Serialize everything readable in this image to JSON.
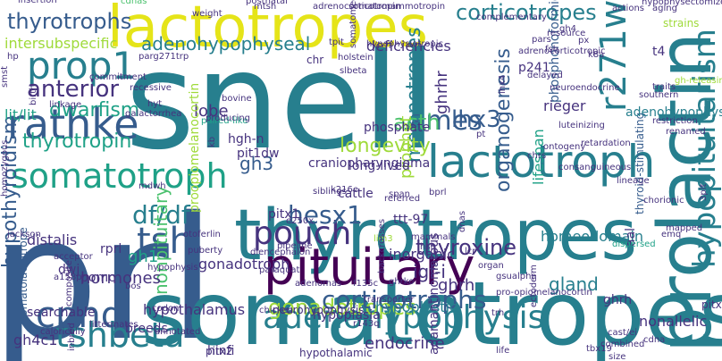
{
  "palette": {
    "purple": "#440154",
    "indigo": "#46337e",
    "blue": "#365c8d",
    "steel": "#277f8e",
    "teal": "#1fa187",
    "green": "#4ac16d",
    "lime": "#9fda3a",
    "yellow": "#e5e419"
  },
  "words": [
    {
      "text": "snell",
      "color": "steel"
    },
    {
      "text": "prl",
      "color": "blue"
    },
    {
      "text": "somatotropes",
      "color": "steel"
    },
    {
      "text": "thyrotropes",
      "color": "steel"
    },
    {
      "text": "prolactin",
      "color": "steel"
    },
    {
      "text": "lactotropes",
      "color": "yellow"
    },
    {
      "text": "pituitary",
      "color": "purple"
    },
    {
      "text": "lactotroph",
      "color": "steel"
    },
    {
      "text": "rathke",
      "color": "blue"
    },
    {
      "text": "prop1",
      "color": "steel"
    },
    {
      "text": "somatotroph",
      "color": "teal"
    },
    {
      "text": "adenohypophysis",
      "color": "steel"
    },
    {
      "text": "tshbeta",
      "color": "steel"
    },
    {
      "text": "pouch",
      "color": "indigo"
    },
    {
      "text": "r271w",
      "color": "steel"
    },
    {
      "text": "tsh",
      "color": "blue"
    },
    {
      "text": "cphd",
      "color": "blue"
    },
    {
      "text": "hypopituitarism",
      "color": "steel"
    },
    {
      "text": "corticotropes",
      "color": "steel"
    },
    {
      "text": "thyrotrophs",
      "color": "blue"
    },
    {
      "text": "thyrotropin",
      "color": "teal"
    },
    {
      "text": "ames",
      "color": "blue"
    },
    {
      "text": "hesx1",
      "color": "blue"
    },
    {
      "text": "adenohypophyseal",
      "color": "steel"
    },
    {
      "text": "anterior",
      "color": "indigo"
    },
    {
      "text": "dwarfism",
      "color": "teal"
    },
    {
      "text": "df/df",
      "color": "steel"
    },
    {
      "text": "gonadotropes",
      "color": "lime"
    },
    {
      "text": "corticotrophs",
      "color": "blue"
    },
    {
      "text": "melanotropes",
      "color": "steel"
    },
    {
      "text": "lhx3",
      "color": "blue"
    },
    {
      "text": "acth",
      "color": "green"
    },
    {
      "text": "longevity",
      "color": "lime"
    },
    {
      "text": "thyroxine",
      "color": "indigo"
    },
    {
      "text": "hypothyroidism",
      "color": "blue"
    },
    {
      "text": "somatolactotrope",
      "color": "blue"
    },
    {
      "text": "nonpituitary",
      "color": "green"
    },
    {
      "text": "ghrhr",
      "color": "indigo"
    },
    {
      "text": "organogenesis",
      "color": "blue"
    },
    {
      "text": "gh3",
      "color": "blue"
    },
    {
      "text": "gh1",
      "color": "teal"
    },
    {
      "text": "gh4c1",
      "color": "indigo"
    },
    {
      "text": "ghrh",
      "color": "indigo"
    },
    {
      "text": "gland",
      "color": "steel"
    },
    {
      "text": "endocrine",
      "color": "indigo"
    },
    {
      "text": "igf-i",
      "color": "indigo"
    },
    {
      "text": "hormones",
      "color": "indigo"
    },
    {
      "text": "hypothalamus",
      "color": "indigo"
    },
    {
      "text": "breeds",
      "color": "indigo"
    },
    {
      "text": "searchable",
      "color": "indigo"
    },
    {
      "text": "distalis",
      "color": "indigo"
    },
    {
      "text": "pomc",
      "color": "indigo"
    },
    {
      "text": "rprl",
      "color": "indigo"
    },
    {
      "text": "dwj",
      "color": "indigo"
    },
    {
      "text": "prophet",
      "color": "lime"
    },
    {
      "text": "lobe",
      "color": "indigo"
    },
    {
      "text": "hgh-n",
      "color": "indigo"
    },
    {
      "text": "pit1dw",
      "color": "indigo"
    },
    {
      "text": "phosphate",
      "color": "indigo"
    },
    {
      "text": "inorganic",
      "color": "indigo"
    },
    {
      "text": "gonadotroph",
      "color": "indigo"
    },
    {
      "text": "long-lived",
      "color": "indigo"
    },
    {
      "text": "ttt-97",
      "color": "indigo"
    },
    {
      "text": "lifespan",
      "color": "teal"
    },
    {
      "text": "homeodomain",
      "color": "steel"
    },
    {
      "text": "rieger",
      "color": "indigo"
    },
    {
      "text": "p241",
      "color": "indigo"
    },
    {
      "text": "t4",
      "color": "indigo"
    },
    {
      "text": "hypoplastic",
      "color": "steel"
    },
    {
      "text": "hypoplasia",
      "color": "indigo"
    },
    {
      "text": "neurohypophysis",
      "color": "indigo"
    },
    {
      "text": "intersubspecific",
      "color": "lime"
    },
    {
      "text": "lit/lit",
      "color": "teal"
    },
    {
      "text": "craniopharyngioma",
      "color": "indigo"
    },
    {
      "text": "cattle",
      "color": "indigo"
    },
    {
      "text": "deficiencies",
      "color": "indigo"
    },
    {
      "text": "chr",
      "color": "indigo"
    },
    {
      "text": "phosphonoformic",
      "color": "blue"
    },
    {
      "text": "hypothalamic",
      "color": "indigo"
    },
    {
      "text": "thyroid-stimulating",
      "color": "blue"
    },
    {
      "text": "proopiomelanocortin",
      "color": "lime"
    },
    {
      "text": "pitx1",
      "color": "indigo"
    },
    {
      "text": "pitx2",
      "color": "indigo"
    },
    {
      "text": "pitx",
      "color": "indigo"
    },
    {
      "text": "hinfi",
      "color": "indigo"
    },
    {
      "text": "nonallelic",
      "color": "indigo"
    },
    {
      "text": "ghrh",
      "color": "indigo"
    },
    {
      "text": "adenohypophyseal",
      "color": "steel"
    },
    {
      "text": "aal",
      "color": "indigo"
    },
    {
      "text": "adamantinomatous",
      "color": "indigo"
    },
    {
      "text": "tbx19",
      "color": "indigo"
    },
    {
      "text": "postnatal",
      "color": "indigo"
    },
    {
      "text": "cdnas",
      "color": "green"
    },
    {
      "text": "mtsh",
      "color": "indigo"
    },
    {
      "text": "adrenocorticotropin",
      "color": "indigo"
    },
    {
      "text": "somatomammotropin",
      "color": "indigo"
    },
    {
      "text": "weight",
      "color": "indigo"
    },
    {
      "text": "pars",
      "color": "indigo"
    },
    {
      "text": "actions",
      "color": "indigo"
    },
    {
      "text": "aging",
      "color": "indigo"
    },
    {
      "text": "resource",
      "color": "indigo"
    },
    {
      "text": "hypophysectomized",
      "color": "indigo"
    },
    {
      "text": "strains",
      "color": "lime"
    },
    {
      "text": "fsh",
      "color": "indigo"
    },
    {
      "text": "delayed",
      "color": "indigo"
    },
    {
      "text": "neuroendocrine",
      "color": "indigo"
    },
    {
      "text": "southern",
      "color": "indigo"
    },
    {
      "text": "restriction",
      "color": "indigo"
    },
    {
      "text": "gh-releasing",
      "color": "lime"
    },
    {
      "text": "luteinizing",
      "color": "indigo"
    },
    {
      "text": "retardation",
      "color": "indigo"
    },
    {
      "text": "consanguineous",
      "color": "indigo"
    },
    {
      "text": "lineage",
      "color": "indigo"
    },
    {
      "text": "chorionic",
      "color": "indigo"
    },
    {
      "text": "dispersed",
      "color": "teal"
    },
    {
      "text": "siblings",
      "color": "indigo"
    },
    {
      "text": "bprl",
      "color": "indigo"
    },
    {
      "text": "chrs",
      "color": "indigo"
    },
    {
      "text": "ontogeny",
      "color": "indigo"
    },
    {
      "text": "referred",
      "color": "indigo"
    },
    {
      "text": "dnas",
      "color": "indigo"
    },
    {
      "text": "mammals",
      "color": "indigo"
    },
    {
      "text": "hsi",
      "color": "indigo"
    },
    {
      "text": "lcr",
      "color": "indigo"
    },
    {
      "text": "organ",
      "color": "indigo"
    },
    {
      "text": "gsualpha",
      "color": "indigo"
    },
    {
      "text": "trh",
      "color": "indigo"
    },
    {
      "text": "ectoderm",
      "color": "indigo"
    },
    {
      "text": "diencephalon",
      "color": "indigo"
    },
    {
      "text": "paraquat",
      "color": "indigo"
    },
    {
      "text": "adenomas",
      "color": "indigo"
    },
    {
      "text": "lim3",
      "color": "lime"
    },
    {
      "text": "otoferlin",
      "color": "indigo"
    },
    {
      "text": "puberty",
      "color": "indigo"
    },
    {
      "text": "acceptor",
      "color": "indigo"
    },
    {
      "text": "a158p",
      "color": "indigo"
    },
    {
      "text": "bos",
      "color": "indigo"
    },
    {
      "text": "pipeline",
      "color": "indigo"
    },
    {
      "text": "chicken",
      "color": "indigo"
    },
    {
      "text": "codon",
      "color": "indigo"
    },
    {
      "text": "littermates",
      "color": "indigo"
    },
    {
      "text": "annotated",
      "color": "indigo"
    },
    {
      "text": "calorically",
      "color": "indigo"
    },
    {
      "text": "inbred",
      "color": "indigo"
    },
    {
      "text": "jackson",
      "color": "indigo"
    },
    {
      "text": "homozygous",
      "color": "indigo"
    },
    {
      "text": "birth",
      "color": "indigo"
    },
    {
      "text": "linkage",
      "color": "indigo"
    },
    {
      "text": "commitment",
      "color": "indigo"
    },
    {
      "text": "recessive",
      "color": "indigo"
    },
    {
      "text": "hyt",
      "color": "indigo"
    },
    {
      "text": "galactorrhea",
      "color": "indigo"
    },
    {
      "text": "paired-like",
      "color": "teal"
    },
    {
      "text": "bovine",
      "color": "indigo"
    },
    {
      "text": "producing",
      "color": "indigo"
    },
    {
      "text": "slbeta",
      "color": "indigo"
    },
    {
      "text": "mdwh",
      "color": "indigo"
    },
    {
      "text": "hypophysiotropic",
      "color": "indigo"
    },
    {
      "text": "somatomedin",
      "color": "indigo"
    },
    {
      "text": "holstein",
      "color": "indigo"
    },
    {
      "text": "tpit",
      "color": "indigo"
    },
    {
      "text": "parg271trp",
      "color": "indigo"
    },
    {
      "text": "lhx4",
      "color": "indigo"
    },
    {
      "text": "adrenocorticotropic",
      "color": "indigo"
    },
    {
      "text": "complementary",
      "color": "indigo"
    },
    {
      "text": "k8a",
      "color": "indigo"
    },
    {
      "text": "e250x",
      "color": "indigo"
    },
    {
      "text": "span",
      "color": "indigo"
    },
    {
      "text": "kb",
      "color": "indigo"
    },
    {
      "text": "life",
      "color": "indigo"
    },
    {
      "text": "cdna",
      "color": "indigo"
    },
    {
      "text": "cast/ei",
      "color": "indigo"
    },
    {
      "text": "hp",
      "color": "indigo"
    },
    {
      "text": "smst",
      "color": "indigo"
    },
    {
      "text": "mapped",
      "color": "indigo"
    },
    {
      "text": "traits",
      "color": "indigo"
    },
    {
      "text": "renamed",
      "color": "indigo"
    },
    {
      "text": "gh4",
      "color": "indigo"
    },
    {
      "text": "px",
      "color": "indigo"
    },
    {
      "text": "pt",
      "color": "indigo"
    },
    {
      "text": "k216e",
      "color": "indigo"
    },
    {
      "text": "r143q",
      "color": "indigo"
    },
    {
      "text": "f135c",
      "color": "indigo"
    },
    {
      "text": "backcrosses",
      "color": "indigo"
    },
    {
      "text": "pro-opiomelanocortin",
      "color": "indigo"
    },
    {
      "text": "transporter",
      "color": "indigo"
    },
    {
      "text": "ghrko",
      "color": "indigo"
    },
    {
      "text": "emq",
      "color": "indigo"
    },
    {
      "text": "3pit",
      "color": "indigo"
    },
    {
      "text": "composite",
      "color": "indigo"
    },
    {
      "text": "hypophysis",
      "color": "indigo"
    },
    {
      "text": "combined",
      "color": "indigo"
    },
    {
      "text": "size",
      "color": "indigo"
    },
    {
      "text": "insertion",
      "color": "indigo"
    },
    {
      "text": "lh",
      "color": "indigo"
    },
    {
      "text": "proximal",
      "color": "indigo"
    }
  ]
}
